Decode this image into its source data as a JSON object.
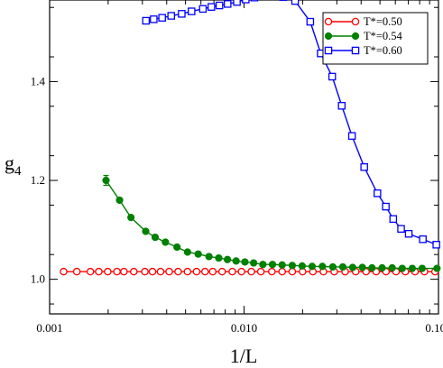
{
  "chart_data": {
    "type": "line",
    "xlabel": "1/L",
    "ylabel": "g",
    "ylabel_subscript": "4",
    "xscale": "log",
    "xlim": [
      0.001,
      0.1
    ],
    "ylim": [
      0.93,
      1.565
    ],
    "xticks": [
      {
        "value": 0.001,
        "label": "0.001"
      },
      {
        "value": 0.01,
        "label": "0.010"
      },
      {
        "value": 0.1,
        "label": "0.100"
      }
    ],
    "yticks": [
      {
        "value": 1.0,
        "label": "1.0"
      },
      {
        "value": 1.2,
        "label": "1.2"
      },
      {
        "value": 1.4,
        "label": "1.4"
      }
    ],
    "legend_position": "top-right",
    "series": [
      {
        "name": "T*=0.50",
        "color": "#ff0000",
        "marker": "circle-open",
        "x": [
          0.00118,
          0.00138,
          0.00162,
          0.00179,
          0.00199,
          0.00222,
          0.00241,
          0.00271,
          0.00309,
          0.00338,
          0.00372,
          0.00412,
          0.00458,
          0.00512,
          0.0057,
          0.0063,
          0.0069,
          0.00771,
          0.0087,
          0.0097,
          0.0109,
          0.0122,
          0.0139,
          0.0157,
          0.0177,
          0.02,
          0.0226,
          0.0256,
          0.0291,
          0.0331,
          0.0375,
          0.0424,
          0.0478,
          0.0537,
          0.0605,
          0.0675,
          0.0757,
          0.0847,
          0.096
        ],
        "y": [
          1.0155,
          1.0155,
          1.0155,
          1.0155,
          1.0155,
          1.0155,
          1.0155,
          1.0155,
          1.0155,
          1.0155,
          1.0155,
          1.0155,
          1.0155,
          1.0155,
          1.0155,
          1.0155,
          1.0155,
          1.0155,
          1.0155,
          1.0155,
          1.0155,
          1.0155,
          1.0155,
          1.0155,
          1.0155,
          1.0155,
          1.0155,
          1.0155,
          1.0155,
          1.0155,
          1.0155,
          1.0155,
          1.0155,
          1.0155,
          1.0155,
          1.0155,
          1.0155,
          1.0155,
          1.0155
        ]
      },
      {
        "name": "T*=0.54",
        "color": "#008000",
        "marker": "circle-filled",
        "x": [
          0.00195,
          0.00229,
          0.00262,
          0.00312,
          0.00349,
          0.00394,
          0.00452,
          0.00512,
          0.00581,
          0.0066,
          0.00741,
          0.00821,
          0.0091,
          0.0101,
          0.0112,
          0.0125,
          0.014,
          0.0157,
          0.0177,
          0.0199,
          0.0224,
          0.0253,
          0.0286,
          0.0322,
          0.0362,
          0.0406,
          0.0455,
          0.0513,
          0.0578,
          0.0651,
          0.0733,
          0.0824,
          0.0982
        ],
        "y": [
          1.2,
          1.16,
          1.125,
          1.097,
          1.085,
          1.075,
          1.065,
          1.055,
          1.051,
          1.046,
          1.043,
          1.04,
          1.037,
          1.035,
          1.033,
          1.03,
          1.03,
          1.029,
          1.028,
          1.027,
          1.026,
          1.026,
          1.025,
          1.025,
          1.024,
          1.024,
          1.023,
          1.023,
          1.023,
          1.022,
          1.022,
          1.022,
          1.022
        ],
        "error_bar": {
          "x": 0.00195,
          "y_low": 1.19,
          "y_high": 1.21
        }
      },
      {
        "name": "T*=0.60",
        "color": "#0000ff",
        "marker": "square-open",
        "x": [
          0.00313,
          0.00343,
          0.00379,
          0.00422,
          0.00478,
          0.00537,
          0.00614,
          0.00679,
          0.00747,
          0.00823,
          0.00919,
          0.0102,
          0.0113,
          0.0128,
          0.0142,
          0.0159,
          0.0183,
          0.0219,
          0.0248,
          0.0284,
          0.0318,
          0.0359,
          0.0415,
          0.0485,
          0.0536,
          0.0585,
          0.0642,
          0.0703,
          0.0831,
          0.0975
        ],
        "y": [
          1.523,
          1.526,
          1.529,
          1.533,
          1.537,
          1.542,
          1.547,
          1.551,
          1.554,
          1.557,
          1.561,
          1.566,
          1.57,
          1.577,
          1.577,
          1.571,
          1.563,
          1.521,
          1.457,
          1.41,
          1.351,
          1.29,
          1.227,
          1.174,
          1.147,
          1.122,
          1.102,
          1.092,
          1.081,
          1.07
        ]
      }
    ]
  }
}
